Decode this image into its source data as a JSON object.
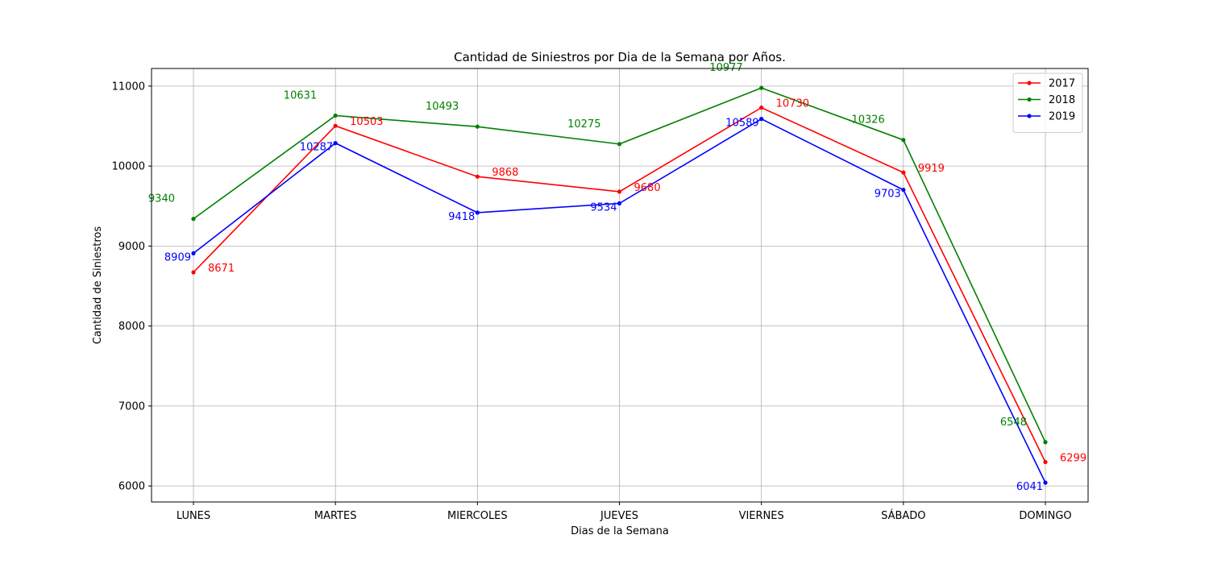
{
  "chart_data": {
    "type": "line",
    "title": "Cantidad de Siniestros por Dia de la Semana por Años.",
    "xlabel": "Dias de la Semana",
    "ylabel": "Cantidad de Siniestros",
    "categories": [
      "LUNES",
      "MARTES",
      "MIERCOLES",
      "JUEVES",
      "VIERNES",
      "SÁBADO",
      "DOMINGO"
    ],
    "ylim": [
      5800,
      11220
    ],
    "yticks": [
      6000,
      7000,
      8000,
      9000,
      10000,
      11000
    ],
    "grid": true,
    "legend_position": "top-right",
    "series": [
      {
        "name": "2017",
        "color": "#ff0000",
        "values": [
          8671,
          10503,
          9868,
          9680,
          10730,
          9919,
          6299
        ]
      },
      {
        "name": "2018",
        "color": "#008000",
        "values": [
          9340,
          10631,
          10493,
          10275,
          10977,
          10326,
          6548
        ]
      },
      {
        "name": "2019",
        "color": "#0000ff",
        "values": [
          8909,
          10287,
          9418,
          9534,
          10589,
          9703,
          6041
        ]
      }
    ]
  }
}
